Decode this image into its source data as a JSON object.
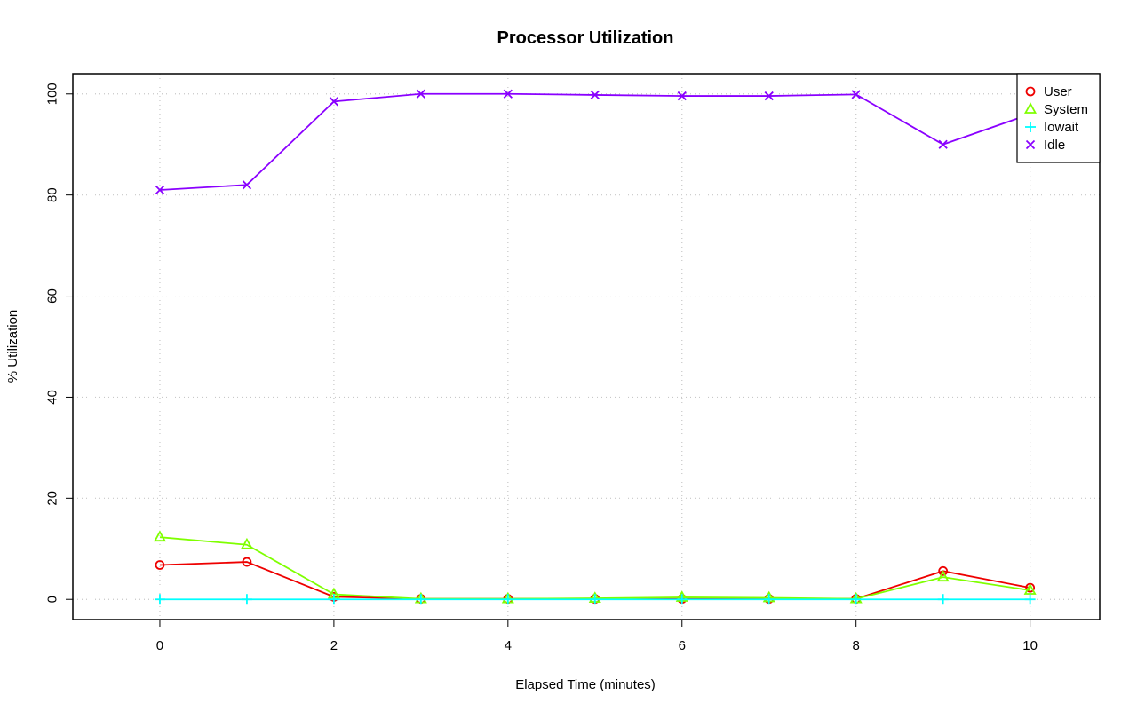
{
  "chart_data": {
    "type": "line",
    "title": "Processor Utilization",
    "xlabel": "Elapsed Time (minutes)",
    "ylabel": "% Utilization",
    "xlim": [
      -1,
      10.8
    ],
    "ylim": [
      -4,
      104
    ],
    "xticks": [
      0,
      2,
      4,
      6,
      8,
      10
    ],
    "yticks": [
      0,
      20,
      40,
      60,
      80,
      100
    ],
    "grid": true,
    "legend_position": "top-right",
    "x": [
      0,
      1,
      2,
      3,
      4,
      5,
      6,
      7,
      8,
      9,
      10
    ],
    "series": [
      {
        "name": "User",
        "color": "#ee0000",
        "marker": "circle",
        "values": [
          6.8,
          7.4,
          0.5,
          0.1,
          0.1,
          0.1,
          0.1,
          0.1,
          0.1,
          5.6,
          2.3
        ]
      },
      {
        "name": "System",
        "color": "#7fff00",
        "marker": "triangle",
        "values": [
          12.3,
          10.8,
          1.0,
          0.1,
          0.1,
          0.2,
          0.4,
          0.3,
          0.1,
          4.4,
          1.8
        ]
      },
      {
        "name": "Iowait",
        "color": "#00ffff",
        "marker": "plus",
        "values": [
          0,
          0,
          0,
          0,
          0,
          0,
          0,
          0,
          0,
          0,
          0
        ]
      },
      {
        "name": "Idle",
        "color": "#8a00ff",
        "marker": "cross",
        "values": [
          81,
          82,
          98.5,
          100,
          100,
          99.8,
          99.6,
          99.6,
          99.9,
          90,
          96
        ]
      }
    ]
  }
}
